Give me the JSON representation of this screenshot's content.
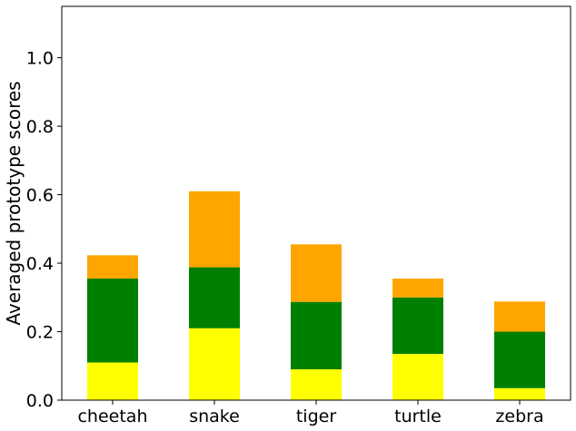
{
  "chart_data": {
    "type": "bar",
    "stacked": true,
    "title": "",
    "xlabel": "",
    "ylabel": "Averaged prototype scores",
    "ylim": [
      0,
      1.15
    ],
    "yticks": [
      "0.0",
      "0.2",
      "0.4",
      "0.6",
      "0.8",
      "1.0"
    ],
    "categories": [
      "cheetah",
      "snake",
      "tiger",
      "turtle",
      "zebra"
    ],
    "series": [
      {
        "color": "#ffff00",
        "values": [
          0.11,
          0.21,
          0.09,
          0.135,
          0.035
        ]
      },
      {
        "color": "#008000",
        "values": [
          0.245,
          0.178,
          0.197,
          0.165,
          0.165
        ]
      },
      {
        "color": "#ffa500",
        "values": [
          0.068,
          0.222,
          0.168,
          0.055,
          0.088
        ]
      }
    ],
    "grid": false,
    "legend": "none"
  }
}
